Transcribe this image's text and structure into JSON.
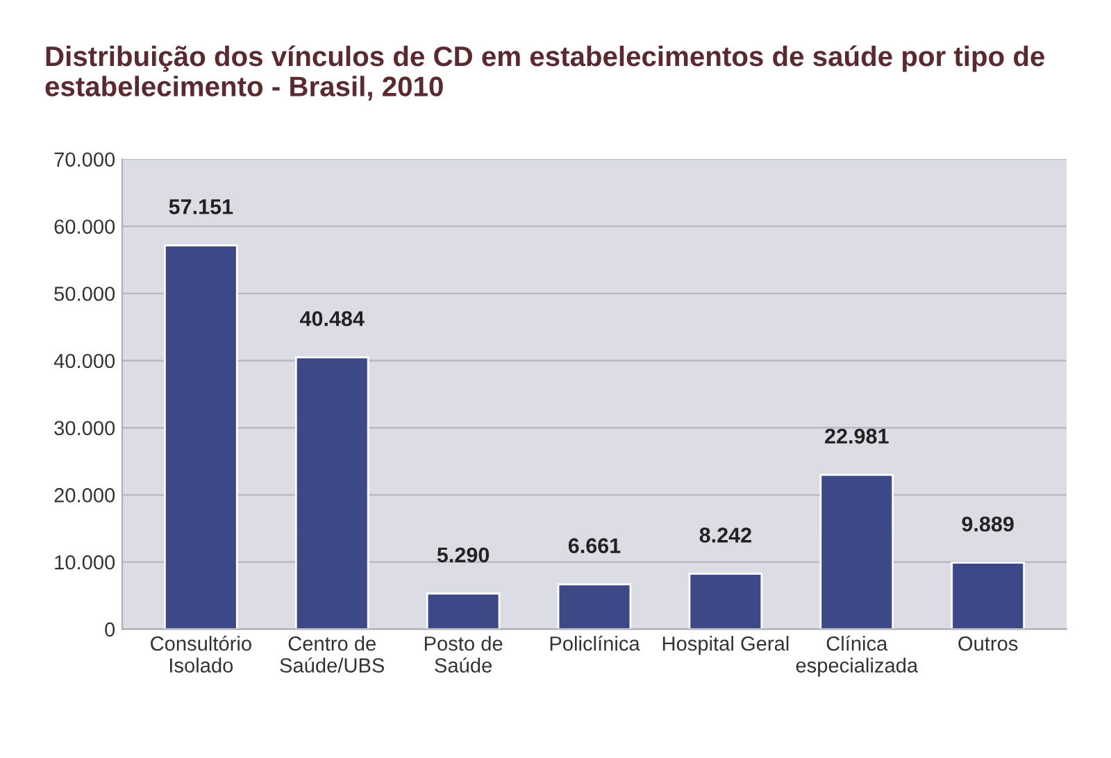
{
  "chart_data": {
    "type": "bar",
    "title": "Distribuição dos vínculos de CD em estabelecimentos de saúde por tipo de estabelecimento - Brasil, 2010",
    "categories": [
      "Consultório\nIsolado",
      "Centro de\nSaúde/UBS",
      "Posto de\nSaúde",
      "Policlínica",
      "Hospital Geral",
      "Clínica\nespecializada",
      "Outros"
    ],
    "values": [
      57151,
      40484,
      5290,
      6661,
      8242,
      22981,
      9889
    ],
    "value_labels": [
      "57.151",
      "40.484",
      "5.290",
      "6.661",
      "8.242",
      "22.981",
      "9.889"
    ],
    "color": "#3d4886",
    "ylim": [
      0,
      70000
    ],
    "yticks": [
      0,
      {
        "value": 10000,
        "label": "10.000"
      },
      {
        "value": 20000,
        "label": "20.000"
      },
      {
        "value": 30000,
        "label": "30.000"
      },
      {
        "value": 40000,
        "label": "40.000"
      },
      {
        "value": 50000,
        "label": "50.000"
      },
      {
        "value": 60000,
        "label": "60.000"
      },
      {
        "value": 70000,
        "label": "70.000"
      }
    ],
    "grid": "y"
  }
}
